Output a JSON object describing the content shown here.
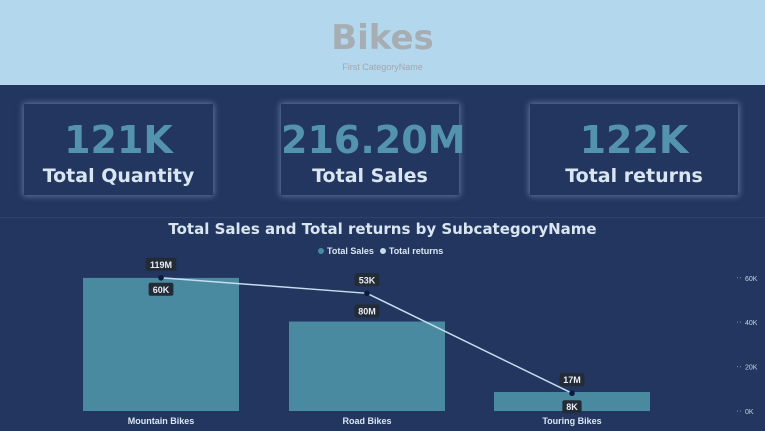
{
  "header": {
    "title": "Bikes",
    "subtitle": "First CategoryName"
  },
  "kpis": [
    {
      "value": "121K",
      "label": "Total Quantity"
    },
    {
      "value": "216.20M",
      "label": "Total Sales"
    },
    {
      "value": "122K",
      "label": "Total returns"
    }
  ],
  "colors": {
    "header_bg": "#b3d7ec",
    "page_bg": "#22365f",
    "kpi_value": "#5493ad",
    "bar": "#4a8aa1",
    "line": "#c5dcef",
    "marker": "#0d1a3d"
  },
  "chart_data": {
    "type": "bar",
    "title": "Total Sales and Total returns by SubcategoryName",
    "legend_position": "top-center",
    "categories": [
      "Mountain Bikes",
      "Road Bikes",
      "Touring Bikes"
    ],
    "series": [
      {
        "name": "Total Sales",
        "type": "bar",
        "values": [
          119,
          80,
          17
        ],
        "labels": [
          "119M",
          "80M",
          "17M"
        ]
      },
      {
        "name": "Total returns",
        "type": "line",
        "axis": "secondary",
        "values": [
          60,
          53,
          8
        ],
        "labels": [
          "60K",
          "53K",
          "8K"
        ]
      }
    ],
    "ylim": [
      0,
      135
    ],
    "y2lim": [
      0,
      68
    ],
    "y2_ticks": [
      "0K",
      "20K",
      "40K",
      "60K"
    ],
    "y2_tick_values": [
      0,
      20,
      40,
      60
    ],
    "grid": false
  }
}
